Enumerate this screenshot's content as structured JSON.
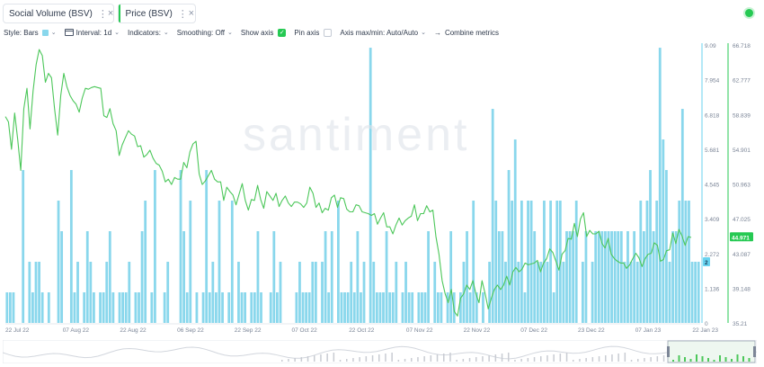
{
  "metrics": [
    {
      "label": "Social Volume (BSV)",
      "accent": "#68d3ef"
    },
    {
      "label": "Price (BSV)",
      "accent": "#26c953"
    }
  ],
  "menu_glyph": "⋮",
  "close_glyph": "×",
  "toolbar": {
    "style": "Style: Bars",
    "interval": "Interval: 1d",
    "indicators": "Indicators:",
    "smoothing": "Smoothing: Off",
    "show_axis": "Show axis",
    "pin_axis": "Pin axis",
    "axis_maxmin": "Axis max/min: Auto/Auto",
    "combine": "Combine metrics",
    "show_axis_checked": true,
    "pin_axis_checked": false
  },
  "icons": {
    "chevron": "chevron-down-icon",
    "calendar": "calendar-icon",
    "arrow": "arrow-right-icon",
    "status": "live-status-icon"
  },
  "colors": {
    "bars": "#89d7ec",
    "price_line": "#4cc75a",
    "price_badge": "#26c953",
    "volume_badge": "#68d3ef"
  },
  "watermark": "santiment",
  "chart_data": {
    "type": "bar",
    "x_ticks": [
      "22 Jul 22",
      "07 Aug 22",
      "22 Aug 22",
      "06 Sep 22",
      "22 Sep 22",
      "07 Oct 22",
      "22 Oct 22",
      "07 Nov 22",
      "22 Nov 22",
      "07 Dec 22",
      "23 Dec 22",
      "07 Jan 23",
      "22 Jan 23"
    ],
    "volume_axis_ticks": [
      "9.09",
      "7.954",
      "6.818",
      "5.681",
      "4.545",
      "3.409",
      "2.272",
      "1.136",
      "0"
    ],
    "volume_ylim": [
      0,
      9.09
    ],
    "price_axis_ticks": [
      "66.718",
      "62.777",
      "58.839",
      "54.901",
      "50.963",
      "47.025",
      "43.087",
      "39.148",
      "35.21"
    ],
    "price_ylim": [
      35.21,
      66.718
    ],
    "current_volume": "2",
    "current_price": "44.971",
    "series": [
      {
        "name": "Social Volume (BSV)",
        "type": "bar",
        "values": [
          1,
          1,
          1,
          0,
          0,
          5,
          0,
          2,
          1,
          2,
          2,
          1,
          0,
          1,
          0,
          0,
          4,
          3,
          0,
          0,
          5,
          1,
          2,
          0,
          1,
          3,
          2,
          1,
          0,
          1,
          1,
          2,
          3,
          1,
          0,
          1,
          1,
          1,
          2,
          0,
          1,
          1,
          3,
          4,
          0,
          1,
          5,
          0,
          0,
          1,
          2,
          0,
          0,
          0,
          5,
          3,
          1,
          4,
          0,
          1,
          0,
          1,
          5,
          1,
          2,
          1,
          4,
          1,
          0,
          1,
          4,
          0,
          2,
          1,
          1,
          0,
          1,
          1,
          3,
          1,
          0,
          0,
          1,
          3,
          1,
          2,
          0,
          0,
          0,
          0,
          1,
          2,
          1,
          1,
          1,
          2,
          2,
          0,
          2,
          3,
          1,
          3,
          0,
          4,
          1,
          1,
          1,
          2,
          1,
          3,
          1,
          2,
          0,
          9,
          2,
          1,
          1,
          1,
          3,
          1,
          1,
          2,
          0,
          1,
          2,
          1,
          1,
          0,
          1,
          1,
          1,
          3,
          0,
          2,
          1,
          1,
          0,
          1,
          3,
          1,
          0,
          1,
          2,
          3,
          1,
          4,
          1,
          0,
          1,
          0,
          2,
          7,
          4,
          3,
          3,
          2,
          5,
          4,
          6,
          2,
          4,
          1,
          4,
          4,
          3,
          2,
          2,
          4,
          2,
          4,
          1,
          4,
          4,
          2,
          3,
          3,
          3,
          4,
          0,
          2,
          3,
          0,
          2,
          3,
          3,
          3,
          3,
          3,
          3,
          3,
          3,
          3,
          2,
          3,
          2,
          3,
          2,
          4,
          3,
          4,
          5,
          3,
          4,
          9,
          6,
          5,
          2,
          3,
          3,
          4,
          7,
          4,
          4,
          2,
          2,
          2
        ],
        "unit": "mentions",
        "color": "#89d7ec"
      },
      {
        "name": "Price (BSV)",
        "type": "line",
        "values": [
          58.6,
          58.0,
          54.9,
          59.0,
          56.0,
          52.5,
          59.5,
          61.8,
          57.2,
          61.5,
          64.5,
          66.2,
          65.5,
          62.5,
          63.5,
          63.0,
          59.5,
          56.5,
          61.0,
          63.5,
          62.0,
          61.0,
          60.4,
          60.0,
          59.1,
          60.7,
          61.8,
          61.7,
          61.9,
          62.0,
          61.9,
          61.8,
          58.7,
          58.5,
          59.5,
          57.8,
          57.0,
          54.2,
          55.4,
          56.2,
          57.0,
          56.6,
          56.4,
          55.2,
          55.3,
          54.0,
          54.3,
          54.8,
          53.9,
          53.3,
          53.1,
          52.4,
          51.2,
          51.5,
          50.9,
          51.7,
          51.5,
          51.5,
          53.4,
          52.8,
          54.6,
          55.5,
          55.8,
          52.1,
          50.9,
          51.3,
          51.9,
          52.5,
          51.5,
          51.2,
          51.2,
          49.1,
          50.6,
          50.1,
          49.7,
          48.6,
          49.8,
          51.0,
          49.1,
          48.0,
          49.2,
          49.1,
          50.8,
          49.2,
          48.2,
          50.1,
          49.6,
          49.1,
          49.9,
          48.4,
          49.1,
          49.6,
          48.8,
          48.4,
          48.9,
          48.9,
          48.7,
          48.3,
          48.8,
          50.6,
          49.9,
          48.3,
          48.8,
          47.7,
          48.2,
          48.0,
          49.4,
          49.7,
          48.3,
          49.4,
          49.3,
          48.1,
          47.8,
          47.8,
          48.6,
          48.5,
          47.8,
          47.7,
          47.6,
          47.4,
          47.6,
          46.4,
          47.1,
          47.7,
          46.1,
          46.1,
          45.3,
          46.3,
          47.1,
          46.3,
          46.8,
          47.1,
          47.3,
          48.6,
          46.8,
          47.6,
          47.6,
          48.5,
          47.8,
          48.0,
          45.0,
          43.0,
          40.0,
          38.5,
          37.5,
          39.0,
          36.5,
          36.0,
          38.0,
          38.5,
          39.5,
          39.0,
          40.0,
          38.5,
          37.5,
          40.0,
          38.5,
          36.8,
          38.0,
          39.0,
          39.5,
          39.0,
          39.5,
          40.5,
          39.5,
          41.0,
          41.5,
          41.0,
          41.3,
          42.0,
          41.8,
          41.9,
          42.0,
          42.3,
          41.0,
          42.0,
          42.5,
          43.6,
          43.2,
          42.2,
          41.2,
          43.0,
          43.4,
          44.8,
          44.7,
          46.5,
          45.0,
          47.0,
          47.7,
          45.0,
          45.7,
          45.3,
          45.3,
          45.6,
          44.2,
          43.7,
          44.8,
          43.0,
          42.5,
          42.2,
          42.0,
          42.0,
          41.4,
          41.8,
          42.5,
          43.1,
          42.6,
          41.6,
          42.5,
          43.0,
          43.1,
          44.3,
          44.0,
          42.2,
          42.4,
          43.4,
          43.5,
          45.4,
          44.2,
          45.8,
          45.1,
          44.0,
          45.0,
          44.9
        ],
        "unit": "USD",
        "color": "#4cc75a"
      }
    ],
    "grid": false,
    "legend": "none"
  }
}
